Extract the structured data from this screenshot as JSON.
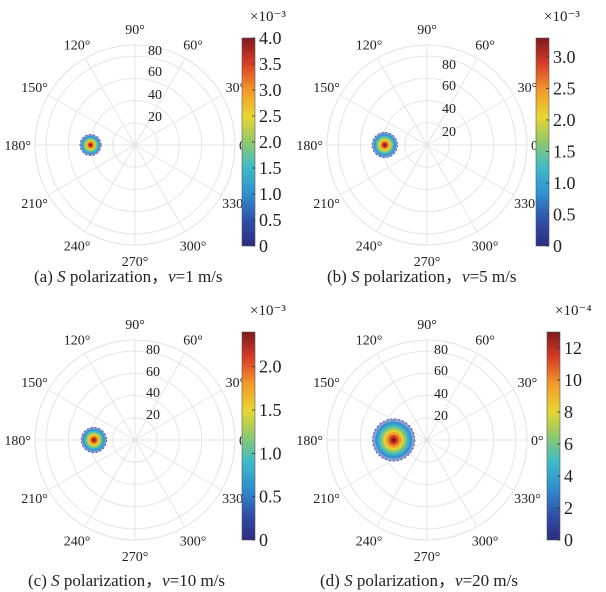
{
  "figure": {
    "panels": [
      {
        "caption": {
          "label": "(a)",
          "pol": "S",
          "word": "polarization，",
          "var": "v",
          "speed": "=1 m/s"
        },
        "colorbar": {
          "exponent_text": "×10⁻³",
          "tick_labels": [
            "4.0",
            "3.5",
            "3.0",
            "2.5",
            "2.0",
            "1.5",
            "1.0",
            "0.5",
            "0"
          ]
        }
      },
      {
        "caption": {
          "label": "(b)",
          "pol": "S",
          "word": "polarization，",
          "var": "v",
          "speed": "=5 m/s"
        },
        "colorbar": {
          "exponent_text": "×10⁻³",
          "tick_labels": [
            "3.0",
            "2.5",
            "2.0",
            "1.5",
            "1.0",
            "0.5",
            "0"
          ]
        }
      },
      {
        "caption": {
          "label": "(c)",
          "pol": "S",
          "word": "polarization，",
          "var": "v",
          "speed": "=10 m/s"
        },
        "colorbar": {
          "exponent_text": "×10⁻³",
          "tick_labels": [
            "2.0",
            "1.5",
            "1.0",
            "0.5",
            "0"
          ]
        }
      },
      {
        "caption": {
          "label": "(d)",
          "pol": "S",
          "word": "polarization，",
          "var": "v",
          "speed": "=20 m/s"
        },
        "colorbar": {
          "exponent_text": "×10⁻⁴",
          "tick_labels": [
            "12",
            "10",
            "8",
            "6",
            "4",
            "2",
            "0"
          ]
        }
      }
    ]
  },
  "chart_data": [
    {
      "type": "heatmap",
      "projection": "polar",
      "theta_ticks_deg": [
        0,
        30,
        60,
        90,
        120,
        150,
        180,
        210,
        240,
        270,
        300,
        330
      ],
      "theta_tick_labels": [
        "0°",
        "30°",
        "60°",
        "90°",
        "120°",
        "150°",
        "180°",
        "210°",
        "240°",
        "270°",
        "300°",
        "330°"
      ],
      "r_ticks": [
        20,
        40,
        60,
        80
      ],
      "r_tick_labels": [
        "20",
        "40",
        "60",
        "80"
      ],
      "rlim": [
        0,
        90
      ],
      "colorbar": {
        "min": 0,
        "max": 4.0,
        "scale": 0.001,
        "ticks": [
          0,
          0.5,
          1.0,
          1.5,
          2.0,
          2.5,
          3.0,
          3.5,
          4.0
        ]
      },
      "hotspot": {
        "theta_deg": 180,
        "r": 40,
        "spread_r": 5,
        "peak": 4.0
      }
    },
    {
      "type": "heatmap",
      "projection": "polar",
      "theta_ticks_deg": [
        0,
        30,
        60,
        90,
        120,
        150,
        180,
        210,
        240,
        270,
        300,
        330
      ],
      "theta_tick_labels": [
        "0°",
        "30°",
        "60°",
        "90°",
        "120°",
        "150°",
        "180°",
        "210°",
        "240°",
        "270°",
        "300°",
        "330°"
      ],
      "r_ticks": [
        20,
        40,
        60,
        80
      ],
      "r_tick_labels": [
        "20",
        "40",
        "60",
        "80"
      ],
      "rlim": [
        0,
        90
      ],
      "colorbar": {
        "min": 0,
        "max": 3.3,
        "scale": 0.001,
        "ticks": [
          0,
          0.5,
          1.0,
          1.5,
          2.0,
          2.5,
          3.0
        ]
      },
      "hotspot": {
        "theta_deg": 180,
        "r": 38,
        "spread_r": 6,
        "peak": 3.3
      }
    },
    {
      "type": "heatmap",
      "projection": "polar",
      "theta_ticks_deg": [
        0,
        30,
        60,
        90,
        120,
        150,
        180,
        210,
        240,
        270,
        300,
        330
      ],
      "theta_tick_labels": [
        "0°",
        "30°",
        "60°",
        "90°",
        "120°",
        "150°",
        "180°",
        "210°",
        "240°",
        "270°",
        "300°",
        "330°"
      ],
      "r_ticks": [
        20,
        40,
        60,
        80
      ],
      "r_tick_labels": [
        "20",
        "40",
        "60",
        "80"
      ],
      "rlim": [
        0,
        90
      ],
      "colorbar": {
        "min": 0,
        "max": 2.4,
        "scale": 0.001,
        "ticks": [
          0,
          0.5,
          1.0,
          1.5,
          2.0
        ]
      },
      "hotspot": {
        "theta_deg": 180,
        "r": 37,
        "spread_r": 6,
        "peak": 2.4
      }
    },
    {
      "type": "heatmap",
      "projection": "polar",
      "theta_ticks_deg": [
        0,
        30,
        60,
        90,
        120,
        150,
        180,
        210,
        240,
        270,
        300,
        330
      ],
      "theta_tick_labels": [
        "0°",
        "30°",
        "60°",
        "90°",
        "120°",
        "150°",
        "180°",
        "210°",
        "240°",
        "270°",
        "300°",
        "330°"
      ],
      "r_ticks": [
        20,
        40,
        60,
        80
      ],
      "r_tick_labels": [
        "20",
        "40",
        "60",
        "80"
      ],
      "rlim": [
        0,
        90
      ],
      "colorbar": {
        "min": 0,
        "max": 13,
        "scale": 0.0001,
        "ticks": [
          0,
          2,
          4,
          6,
          8,
          10,
          12
        ]
      },
      "hotspot": {
        "theta_deg": 180,
        "r": 30,
        "spread_r": 10,
        "peak": 13
      }
    }
  ]
}
